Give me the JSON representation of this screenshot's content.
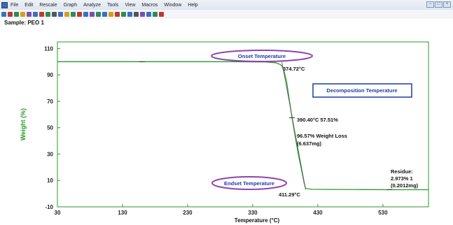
{
  "menubar": {
    "items": [
      "File",
      "Edit",
      "Rescale",
      "Graph",
      "Analyze",
      "Tools",
      "View",
      "Macros",
      "Window",
      "Help"
    ]
  },
  "toolbar": {
    "icon_colors": [
      "#3a6fc4",
      "#c0392b",
      "#2e8b57",
      "#d4a017",
      "#7a4fb0",
      "#3a6fc4",
      "#c0392b",
      "#2e8b57",
      "#555555",
      "#3a6fc4",
      "#d4a017",
      "#2e8b57",
      "#c0392b",
      "#3a6fc4",
      "#7a4fb0",
      "#2e8b57",
      "#3a6fc4",
      "#d4a017",
      "#c0392b",
      "#2e8b57",
      "#3a6fc4",
      "#555555",
      "#7a4fb0",
      "#3a6fc4",
      "#2e8b57",
      "#c0392b"
    ]
  },
  "sample_label": "Sample: PEO 1",
  "chart_data": {
    "type": "line",
    "xlabel": "Temperature (°C)",
    "ylabel": "Weight (%)",
    "xlim": [
      30,
      600
    ],
    "ylim": [
      -10,
      115
    ],
    "xticks": [
      30,
      130,
      230,
      330,
      430,
      530
    ],
    "yticks": [
      -10,
      10,
      30,
      50,
      70,
      90,
      110
    ],
    "grid": false,
    "series": [
      {
        "color": "#2a9a2a",
        "x": [
          30,
          100,
          200,
          300,
          350,
          365,
          372,
          374.72,
          378,
          382,
          386,
          390.4,
          395,
          400,
          405,
          409,
          411.29,
          420,
          450,
          500,
          550,
          600
        ],
        "y": [
          100,
          100,
          100,
          100,
          99.8,
          99.2,
          98,
          97,
          93,
          85,
          72,
          57.51,
          44,
          30,
          18,
          8,
          4,
          3.3,
          3.2,
          3.1,
          3.0,
          2.97
        ]
      }
    ],
    "annotations": {
      "onset_label": "Onset Temperature",
      "onset_value": "374.72°C",
      "decomposition_label": "Decomposition Temperature",
      "midpoint_value": "390.40°C 57.51%",
      "weight_loss_line1": "96.57% Weight Loss",
      "weight_loss_line2": "(6.637mg)",
      "endset_label": "Endset Temperature",
      "endset_value": "411.29°C",
      "residue_line1": "Residue:",
      "residue_line2": "2.973% 1",
      "residue_line3": "(0.2012mg)"
    }
  }
}
